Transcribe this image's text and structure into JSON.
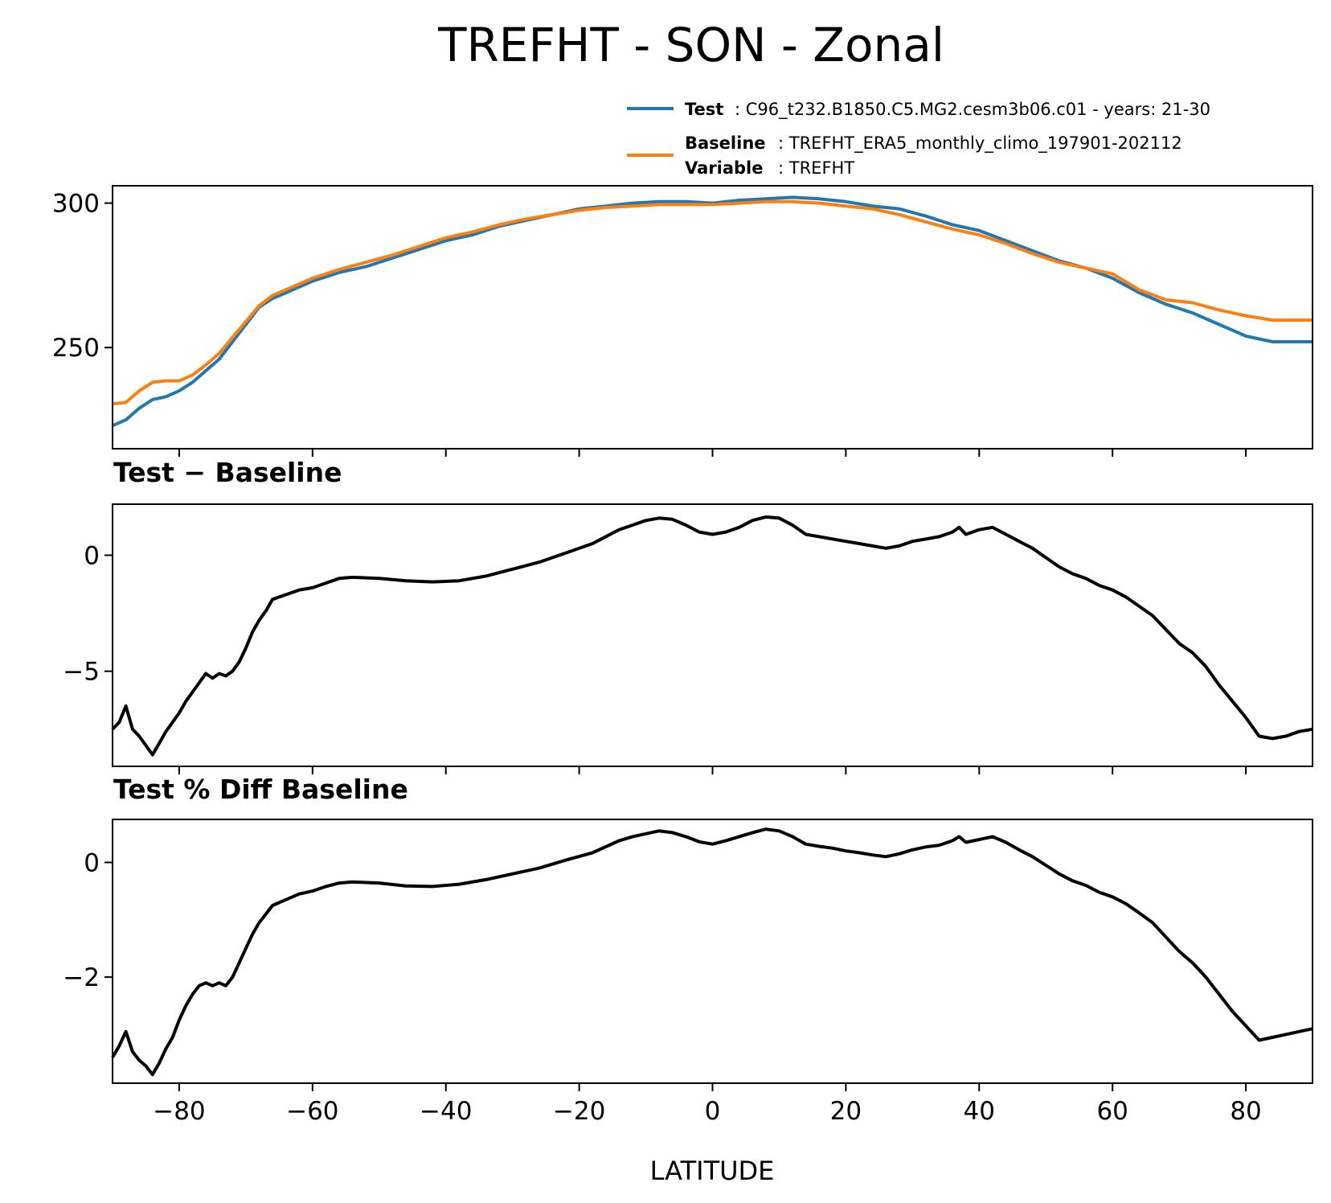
{
  "figure": {
    "title": "TREFHT - SON - Zonal",
    "legend": {
      "placement": "top-right, above first panel",
      "entries": [
        {
          "series": "Test",
          "label": "Test",
          "text": ": C96_t232.B1850.C5.MG2.cesm3b06.c01 - years: 21-30",
          "color": "#1f77b4"
        },
        {
          "series": "Baseline",
          "label": "Baseline",
          "text": ": TREFHT_ERA5_monthly_climo_197901-202112",
          "color": "#ff7f0e"
        },
        {
          "series": "",
          "label": "Variable",
          "text": ": TREFHT",
          "color": ""
        }
      ]
    },
    "xlabel": "LATITUDE",
    "x_ticks": [
      "−80",
      "−60",
      "−40",
      "−20",
      "0",
      "20",
      "40",
      "60",
      "80"
    ]
  },
  "chart_data": [
    {
      "type": "line",
      "title": "",
      "xlim": [
        -90,
        90
      ],
      "ylim": [
        215,
        306
      ],
      "yticks": [
        250,
        300
      ],
      "ytick_labels": [
        "250",
        "300"
      ],
      "grid": false,
      "series": [
        {
          "name": "Test",
          "color": "#1f77b4",
          "x": [
            -90,
            -88,
            -86,
            -84,
            -82,
            -80,
            -78,
            -76,
            -74,
            -72,
            -70,
            -68,
            -66,
            -64,
            -62,
            -60,
            -56,
            -52,
            -48,
            -44,
            -40,
            -36,
            -32,
            -28,
            -24,
            -20,
            -16,
            -12,
            -8,
            -4,
            0,
            4,
            8,
            12,
            16,
            20,
            24,
            28,
            32,
            36,
            40,
            44,
            48,
            52,
            56,
            60,
            64,
            68,
            72,
            76,
            80,
            84,
            88,
            90
          ],
          "y": [
            223,
            225,
            229,
            232,
            233,
            235,
            238,
            242,
            246,
            252,
            258,
            264,
            267,
            269,
            271,
            273,
            276,
            278,
            281,
            284,
            287,
            289,
            292,
            294,
            296,
            298,
            299,
            300,
            300.5,
            300.5,
            300,
            301,
            301.5,
            302,
            301.5,
            300.5,
            299,
            298,
            295.5,
            292.5,
            290.5,
            287,
            283.5,
            280,
            277.5,
            274,
            269,
            265,
            262,
            258,
            254,
            252,
            252,
            252
          ]
        },
        {
          "name": "Baseline",
          "color": "#ff7f0e",
          "x": [
            -90,
            -88,
            -86,
            -84,
            -82,
            -80,
            -78,
            -76,
            -74,
            -72,
            -70,
            -68,
            -66,
            -64,
            -62,
            -60,
            -56,
            -52,
            -48,
            -44,
            -40,
            -36,
            -32,
            -28,
            -24,
            -20,
            -16,
            -12,
            -8,
            -4,
            0,
            4,
            8,
            12,
            16,
            20,
            24,
            28,
            32,
            36,
            40,
            44,
            48,
            52,
            56,
            60,
            64,
            68,
            72,
            76,
            80,
            84,
            88,
            90
          ],
          "y": [
            230.5,
            231,
            235,
            238,
            238.5,
            238.5,
            240.5,
            244,
            248,
            253.5,
            259,
            264.5,
            268,
            270,
            272,
            274,
            277,
            279.5,
            282,
            285,
            288,
            290,
            292.5,
            294.5,
            296,
            297.5,
            298.5,
            299,
            299.5,
            299.5,
            299.5,
            300,
            300.5,
            300.5,
            300,
            299,
            298,
            296,
            293.5,
            291,
            289,
            286,
            282.5,
            279.5,
            277.5,
            275.5,
            270,
            266.5,
            265.5,
            263,
            261,
            259.5,
            259.5,
            259.5
          ]
        }
      ]
    },
    {
      "type": "line",
      "title": "Test − Baseline",
      "xlim": [
        -90,
        90
      ],
      "ylim": [
        -9.1,
        2.2
      ],
      "yticks": [
        -5,
        0
      ],
      "ytick_labels": [
        "−5",
        "0"
      ],
      "grid": false,
      "series": [
        {
          "name": "",
          "color": "#000000",
          "x": [
            -90,
            -89,
            -88,
            -87,
            -86,
            -85,
            -84,
            -83,
            -82,
            -81,
            -80,
            -79,
            -78,
            -77,
            -76,
            -75,
            -74,
            -73,
            -72,
            -71,
            -70,
            -69,
            -68,
            -67,
            -66,
            -64,
            -62,
            -60,
            -58,
            -56,
            -54,
            -50,
            -46,
            -42,
            -38,
            -34,
            -30,
            -26,
            -22,
            -18,
            -14,
            -12,
            -10,
            -8,
            -6,
            -4,
            -2,
            0,
            2,
            4,
            6,
            8,
            10,
            12,
            14,
            16,
            18,
            20,
            22,
            24,
            26,
            28,
            30,
            32,
            34,
            36,
            37,
            38,
            40,
            42,
            44,
            46,
            48,
            50,
            52,
            54,
            56,
            58,
            60,
            62,
            64,
            66,
            68,
            70,
            72,
            74,
            76,
            78,
            80,
            82,
            84,
            86,
            88,
            90
          ],
          "y": [
            -7.5,
            -7.2,
            -6.5,
            -7.5,
            -7.8,
            -8.2,
            -8.6,
            -8.1,
            -7.6,
            -7.2,
            -6.8,
            -6.3,
            -5.9,
            -5.5,
            -5.1,
            -5.3,
            -5.1,
            -5.2,
            -5.0,
            -4.6,
            -4.0,
            -3.3,
            -2.8,
            -2.4,
            -1.9,
            -1.7,
            -1.5,
            -1.4,
            -1.2,
            -1.0,
            -0.95,
            -1.0,
            -1.1,
            -1.15,
            -1.1,
            -0.9,
            -0.6,
            -0.3,
            0.1,
            0.5,
            1.1,
            1.3,
            1.5,
            1.6,
            1.55,
            1.3,
            1.0,
            0.9,
            1.0,
            1.2,
            1.5,
            1.65,
            1.6,
            1.3,
            0.9,
            0.8,
            0.7,
            0.6,
            0.5,
            0.4,
            0.3,
            0.4,
            0.6,
            0.7,
            0.8,
            1.0,
            1.2,
            0.9,
            1.1,
            1.2,
            0.9,
            0.6,
            0.3,
            -0.1,
            -0.5,
            -0.8,
            -1.0,
            -1.3,
            -1.5,
            -1.8,
            -2.2,
            -2.6,
            -3.2,
            -3.8,
            -4.2,
            -4.8,
            -5.6,
            -6.3,
            -7.0,
            -7.8,
            -7.9,
            -7.8,
            -7.6,
            -7.5
          ]
        }
      ]
    },
    {
      "type": "line",
      "title": "Test % Diff Baseline",
      "xlim": [
        -90,
        90
      ],
      "ylim": [
        -3.85,
        0.75
      ],
      "yticks": [
        -2,
        0
      ],
      "ytick_labels": [
        "−2",
        "0"
      ],
      "grid": false,
      "series": [
        {
          "name": "",
          "color": "#000000",
          "x": [
            -90,
            -89,
            -88,
            -87,
            -86,
            -85,
            -84,
            -83,
            -82,
            -81,
            -80,
            -79,
            -78,
            -77,
            -76,
            -75,
            -74,
            -73,
            -72,
            -71,
            -70,
            -69,
            -68,
            -67,
            -66,
            -64,
            -62,
            -60,
            -58,
            -56,
            -54,
            -50,
            -46,
            -42,
            -38,
            -34,
            -30,
            -26,
            -22,
            -18,
            -14,
            -12,
            -10,
            -8,
            -6,
            -4,
            -2,
            0,
            2,
            4,
            6,
            8,
            10,
            12,
            14,
            16,
            18,
            20,
            22,
            24,
            26,
            28,
            30,
            32,
            34,
            36,
            37,
            38,
            40,
            42,
            44,
            46,
            48,
            50,
            52,
            54,
            56,
            58,
            60,
            62,
            64,
            66,
            68,
            70,
            72,
            74,
            76,
            78,
            80,
            82,
            84,
            86,
            88,
            90
          ],
          "y": [
            -3.4,
            -3.2,
            -2.95,
            -3.3,
            -3.45,
            -3.55,
            -3.7,
            -3.5,
            -3.25,
            -3.05,
            -2.75,
            -2.5,
            -2.3,
            -2.15,
            -2.1,
            -2.15,
            -2.1,
            -2.15,
            -2.0,
            -1.75,
            -1.5,
            -1.25,
            -1.05,
            -0.9,
            -0.75,
            -0.65,
            -0.55,
            -0.5,
            -0.42,
            -0.36,
            -0.34,
            -0.36,
            -0.41,
            -0.42,
            -0.38,
            -0.3,
            -0.2,
            -0.1,
            0.04,
            0.17,
            0.38,
            0.45,
            0.5,
            0.55,
            0.52,
            0.45,
            0.36,
            0.32,
            0.38,
            0.45,
            0.52,
            0.58,
            0.55,
            0.45,
            0.32,
            0.28,
            0.25,
            0.2,
            0.17,
            0.13,
            0.1,
            0.15,
            0.22,
            0.27,
            0.3,
            0.38,
            0.45,
            0.35,
            0.4,
            0.45,
            0.35,
            0.22,
            0.1,
            -0.05,
            -0.2,
            -0.32,
            -0.4,
            -0.52,
            -0.6,
            -0.72,
            -0.88,
            -1.05,
            -1.3,
            -1.55,
            -1.75,
            -2.0,
            -2.3,
            -2.6,
            -2.85,
            -3.1,
            -3.05,
            -3.0,
            -2.95,
            -2.9
          ]
        }
      ]
    }
  ]
}
